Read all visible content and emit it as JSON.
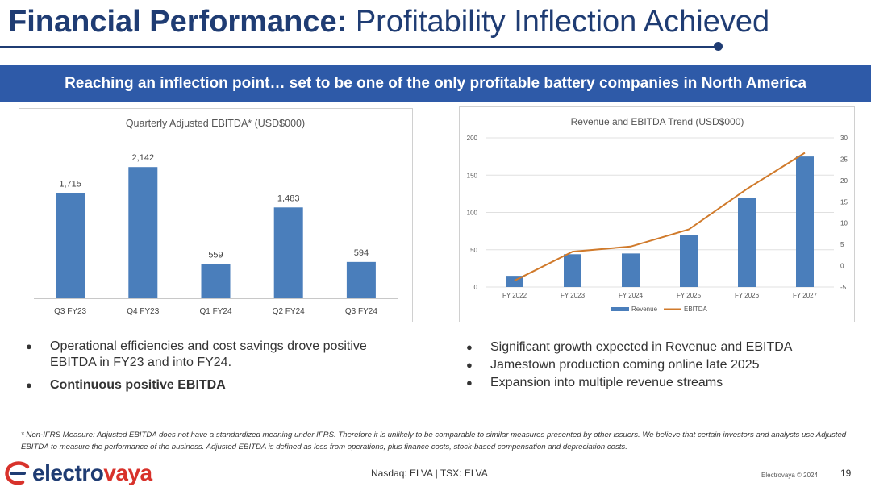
{
  "header": {
    "title_bold": "Financial Performance:",
    "title_light": "Profitability Inflection Achieved"
  },
  "banner": {
    "text": "Reaching an inflection point… set to be one of the only profitable battery companies in North America"
  },
  "colors": {
    "title": "#1f3c73",
    "banner": "#2e5aa8",
    "bar": "#4a7ebb",
    "line": "#d07a2b",
    "logo_blue": "#1f3c73",
    "logo_red": "#d8322b"
  },
  "chart_data": [
    {
      "type": "bar",
      "title": "Quarterly Adjusted EBITDA* (USD$000)",
      "categories": [
        "Q3 FY23",
        "Q4 FY23",
        "Q1 FY24",
        "Q2 FY24",
        "Q3 FY24"
      ],
      "values": [
        1715,
        2142,
        559,
        1483,
        594
      ],
      "data_labels": [
        "1,715",
        "2,142",
        "559",
        "1,483",
        "594"
      ],
      "ylim": [
        0,
        2500
      ]
    },
    {
      "type": "bar",
      "title": "Revenue and EBITDA Trend (USD$000)",
      "categories": [
        "FY 2022",
        "FY 2023",
        "FY 2024",
        "FY 2025",
        "FY 2026",
        "FY 2027"
      ],
      "y_ticks": [
        "0",
        "50",
        "100",
        "150",
        "200"
      ],
      "y2_ticks": [
        "-5",
        "0",
        "5",
        "10",
        "15",
        "20",
        "25",
        "30"
      ],
      "ylim": [
        0,
        200
      ],
      "y2lim": [
        -5,
        30
      ],
      "grid": true,
      "legend": "bottom",
      "series": [
        {
          "name": "Revenue",
          "type": "bar",
          "axis": "left",
          "values": [
            15,
            44,
            45,
            70,
            120,
            175
          ]
        },
        {
          "name": "EBITDA",
          "type": "line",
          "axis": "right",
          "values": [
            -3.5,
            3.3,
            4.5,
            8.5,
            18,
            26.5
          ]
        }
      ]
    }
  ],
  "left_bullets": [
    "Operational efficiencies and cost savings drove positive EBITDA in FY23 and into FY24.",
    "Continuous positive EBITDA"
  ],
  "right_bullets": [
    "Significant growth expected in Revenue and EBITDA",
    "Jamestown production coming online late 2025",
    "Expansion into multiple revenue streams"
  ],
  "footnote": "* Non-IFRS Measure: Adjusted EBITDA does not have a standardized meaning under IFRS. Therefore it is unlikely to be comparable to similar measures presented by other issuers. We believe that certain investors and analysts use Adjusted EBITDA to measure the performance of the business. Adjusted EBITDA is defined as loss from operations,  plus finance costs, stock-based compensation and depreciation costs.",
  "footer": {
    "logo_part1": "electro",
    "logo_part2": "vaya",
    "exchange": "Nasdaq: ELVA | TSX: ELVA",
    "copyright": "Electrovaya © 2024",
    "page_number": "19"
  }
}
